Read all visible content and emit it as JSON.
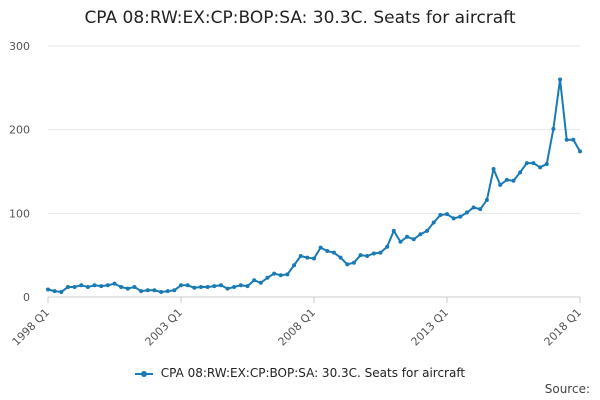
{
  "chart_data": {
    "type": "line",
    "title": "CPA 08:RW:EX:CP:BOP:SA: 30.3C. Seats for aircraft",
    "xlabel": "",
    "ylabel": "",
    "ylim": [
      0,
      300
    ],
    "y_ticks": [
      0,
      100,
      200,
      300
    ],
    "x_tick_labels": [
      "1998 Q1",
      "2003 Q1",
      "2008 Q1",
      "2013 Q1",
      "2018 Q1"
    ],
    "grid": true,
    "legend_position": "bottom",
    "series_color": "#1a7ab6",
    "series": [
      {
        "name": "CPA 08:RW:EX:CP:BOP:SA: 30.3C. Seats for aircraft",
        "x": [
          "1998 Q1",
          "1998 Q2",
          "1998 Q3",
          "1998 Q4",
          "1999 Q1",
          "1999 Q2",
          "1999 Q3",
          "1999 Q4",
          "2000 Q1",
          "2000 Q2",
          "2000 Q3",
          "2000 Q4",
          "2001 Q1",
          "2001 Q2",
          "2001 Q3",
          "2001 Q4",
          "2002 Q1",
          "2002 Q2",
          "2002 Q3",
          "2002 Q4",
          "2003 Q1",
          "2003 Q2",
          "2003 Q3",
          "2003 Q4",
          "2004 Q1",
          "2004 Q2",
          "2004 Q3",
          "2004 Q4",
          "2005 Q1",
          "2005 Q2",
          "2005 Q3",
          "2005 Q4",
          "2006 Q1",
          "2006 Q2",
          "2006 Q3",
          "2006 Q4",
          "2007 Q1",
          "2007 Q2",
          "2007 Q3",
          "2007 Q4",
          "2008 Q1",
          "2008 Q2",
          "2008 Q3",
          "2008 Q4",
          "2009 Q1",
          "2009 Q2",
          "2009 Q3",
          "2009 Q4",
          "2010 Q1",
          "2010 Q2",
          "2010 Q3",
          "2010 Q4",
          "2011 Q1",
          "2011 Q2",
          "2011 Q3",
          "2011 Q4",
          "2012 Q1",
          "2012 Q2",
          "2012 Q3",
          "2012 Q4",
          "2013 Q1",
          "2013 Q2",
          "2013 Q3",
          "2013 Q4",
          "2014 Q1",
          "2014 Q2",
          "2014 Q3",
          "2014 Q4",
          "2015 Q1",
          "2015 Q2",
          "2015 Q3",
          "2015 Q4",
          "2016 Q1",
          "2016 Q2",
          "2016 Q3",
          "2016 Q4",
          "2017 Q1",
          "2017 Q2",
          "2017 Q3",
          "2017 Q4",
          "2018 Q1"
        ],
        "values": [
          9,
          7,
          6,
          12,
          12,
          14,
          12,
          14,
          13,
          14,
          16,
          12,
          10,
          12,
          7,
          8,
          8,
          6,
          7,
          8,
          14,
          14,
          11,
          12,
          12,
          13,
          14,
          10,
          12,
          14,
          13,
          20,
          17,
          23,
          28,
          26,
          27,
          38,
          49,
          47,
          46,
          59,
          55,
          53,
          47,
          39,
          41,
          50,
          49,
          52,
          53,
          60,
          79,
          66,
          72,
          69,
          75,
          79,
          89,
          98,
          99,
          94,
          96,
          101,
          107,
          105,
          116,
          153,
          134,
          140,
          139,
          149,
          160,
          160,
          155,
          159,
          201,
          260,
          188,
          188,
          174
        ]
      }
    ],
    "source_label": "Source:"
  }
}
